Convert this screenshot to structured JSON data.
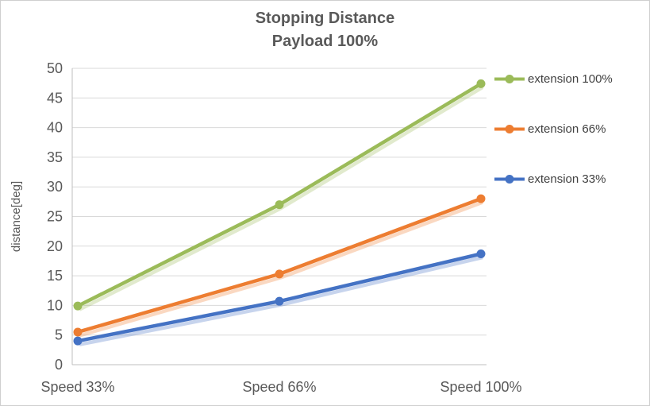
{
  "title": {
    "line1": "Stopping Distance",
    "line2": "Payload 100%"
  },
  "chart_data": {
    "type": "line",
    "categories": [
      "Speed 33%",
      "Speed 66%",
      "Speed 100%"
    ],
    "series": [
      {
        "name": "extension 100%",
        "color": "#9BBB59",
        "values": [
          9.9,
          27.0,
          47.4
        ]
      },
      {
        "name": "extension 66%",
        "color": "#ED7D31",
        "values": [
          5.5,
          15.3,
          28.0
        ]
      },
      {
        "name": "extension 33%",
        "color": "#4472C4",
        "values": [
          4.0,
          10.7,
          18.7
        ]
      }
    ],
    "xlabel": "",
    "ylabel": "distance[deg]",
    "ylim": [
      0,
      50
    ],
    "ytick_step": 5,
    "grid": true,
    "legend_position": "right"
  },
  "colors": {
    "grid": "#D9D9D9",
    "axis": "#BFBFBF",
    "axis_text": "#595959",
    "title_text": "#595959",
    "frame_border": "#CFCFCF"
  }
}
